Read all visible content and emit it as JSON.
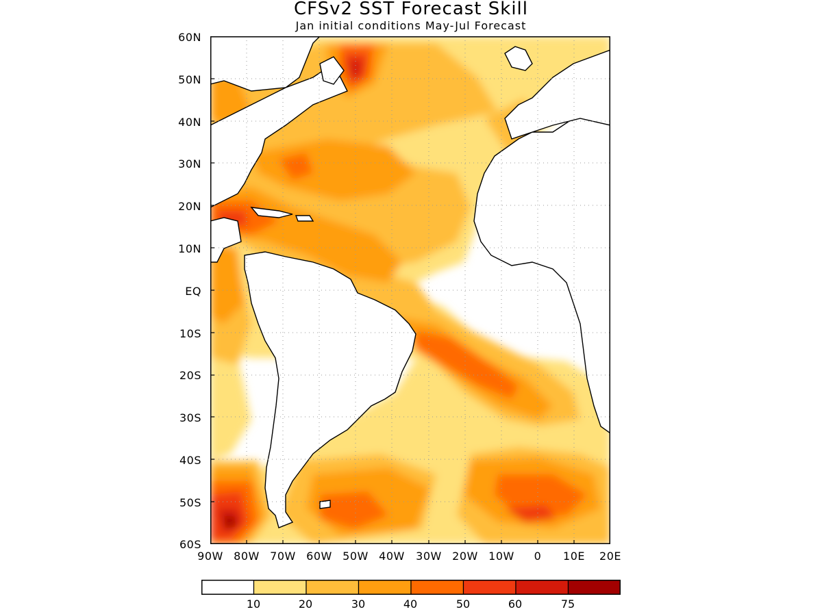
{
  "title": "CFSv2 SST Forecast Skill",
  "subtitle": "Jan initial conditions  May-Jul Forecast",
  "map": {
    "lat_labels": [
      "60N",
      "50N",
      "40N",
      "30N",
      "20N",
      "10N",
      "EQ",
      "10S",
      "20S",
      "30S",
      "40S",
      "50S",
      "60S"
    ],
    "lon_labels": [
      "90W",
      "80W",
      "70W",
      "60W",
      "50W",
      "40W",
      "30W",
      "20W",
      "10W",
      "0",
      "10E",
      "20E"
    ],
    "lat_range": [
      -60,
      60
    ],
    "lon_range": [
      -90,
      20
    ],
    "gridlines": "dotted",
    "land_fill": "#ffffff",
    "coastline_color": "#000000"
  },
  "colorbar": {
    "levels": [
      "10",
      "20",
      "30",
      "40",
      "50",
      "60",
      "75"
    ],
    "colors": [
      "#ffffff",
      "#ffe17a",
      "#ffbd3a",
      "#ff9e10",
      "#ff6a00",
      "#f03a10",
      "#d41a0a",
      "#a20000"
    ]
  }
}
